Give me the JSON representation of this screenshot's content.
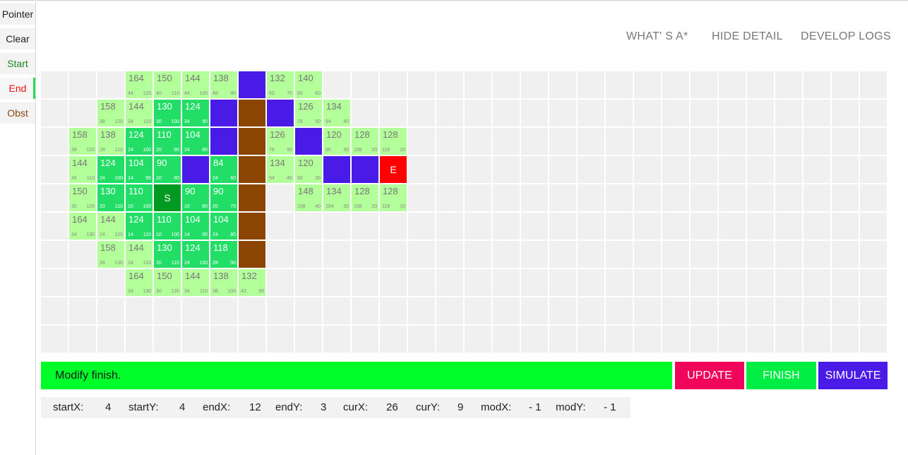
{
  "sidebar": {
    "tools": [
      {
        "label": "Pointer",
        "color": "#222222",
        "active": false
      },
      {
        "label": "Clear",
        "color": "#222222",
        "active": false
      },
      {
        "label": "Start",
        "color": "#1a8a1a",
        "active": false
      },
      {
        "label": "End",
        "color": "#ee1111",
        "active": true
      },
      {
        "label": "Obst",
        "color": "#8b4513",
        "active": false
      }
    ]
  },
  "nav": {
    "whats_astar": "WHAT' S A*",
    "hide_detail": "HIDE DETAIL",
    "develop_logs": "DEVELOP LOGS"
  },
  "grid": {
    "cols": 30,
    "rows": 10,
    "colors": {
      "empty": "#f0f0f0",
      "open": "#b3ff99",
      "closed": "#22dd66",
      "start": "#009922",
      "end": "#ff0000",
      "wall": "#4a1ae6",
      "obstacle": "#8b4500"
    },
    "cells": [
      {
        "col": 3,
        "row": 0,
        "type": "open",
        "f": "164",
        "g": "44",
        "h": "120"
      },
      {
        "col": 4,
        "row": 0,
        "type": "open",
        "f": "150",
        "g": "40",
        "h": "110"
      },
      {
        "col": 5,
        "row": 0,
        "type": "open",
        "f": "144",
        "g": "44",
        "h": "100"
      },
      {
        "col": 6,
        "row": 0,
        "type": "open",
        "f": "138",
        "g": "48",
        "h": "90"
      },
      {
        "col": 7,
        "row": 0,
        "type": "wall"
      },
      {
        "col": 8,
        "row": 0,
        "type": "open",
        "f": "132",
        "g": "62",
        "h": "70"
      },
      {
        "col": 9,
        "row": 0,
        "type": "open",
        "f": "140",
        "g": "80",
        "h": "60"
      },
      {
        "col": 2,
        "row": 1,
        "type": "open",
        "f": "158",
        "g": "38",
        "h": "120"
      },
      {
        "col": 3,
        "row": 1,
        "type": "open",
        "f": "144",
        "g": "34",
        "h": "110"
      },
      {
        "col": 4,
        "row": 1,
        "type": "closed",
        "f": "130",
        "g": "30",
        "h": "100"
      },
      {
        "col": 5,
        "row": 1,
        "type": "closed",
        "f": "124",
        "g": "34",
        "h": "90"
      },
      {
        "col": 6,
        "row": 1,
        "type": "wall"
      },
      {
        "col": 7,
        "row": 1,
        "type": "obstacle"
      },
      {
        "col": 8,
        "row": 1,
        "type": "wall"
      },
      {
        "col": 9,
        "row": 1,
        "type": "open",
        "f": "126",
        "g": "76",
        "h": "50"
      },
      {
        "col": 10,
        "row": 1,
        "type": "open",
        "f": "134",
        "g": "94",
        "h": "40"
      },
      {
        "col": 1,
        "row": 2,
        "type": "open",
        "f": "158",
        "g": "38",
        "h": "120"
      },
      {
        "col": 2,
        "row": 2,
        "type": "open",
        "f": "138",
        "g": "28",
        "h": "110"
      },
      {
        "col": 3,
        "row": 2,
        "type": "closed",
        "f": "124",
        "g": "24",
        "h": "100"
      },
      {
        "col": 4,
        "row": 2,
        "type": "closed",
        "f": "110",
        "g": "20",
        "h": "90"
      },
      {
        "col": 5,
        "row": 2,
        "type": "closed",
        "f": "104",
        "g": "24",
        "h": "80"
      },
      {
        "col": 6,
        "row": 2,
        "type": "wall"
      },
      {
        "col": 7,
        "row": 2,
        "type": "obstacle"
      },
      {
        "col": 8,
        "row": 2,
        "type": "open",
        "f": "126",
        "g": "76",
        "h": "50"
      },
      {
        "col": 9,
        "row": 2,
        "type": "wall"
      },
      {
        "col": 10,
        "row": 2,
        "type": "open",
        "f": "120",
        "g": "90",
        "h": "30"
      },
      {
        "col": 11,
        "row": 2,
        "type": "open",
        "f": "128",
        "g": "108",
        "h": "20"
      },
      {
        "col": 12,
        "row": 2,
        "type": "open",
        "f": "128",
        "g": "118",
        "h": "10"
      },
      {
        "col": 1,
        "row": 3,
        "type": "open",
        "f": "144",
        "g": "34",
        "h": "110"
      },
      {
        "col": 2,
        "row": 3,
        "type": "closed",
        "f": "124",
        "g": "24",
        "h": "100"
      },
      {
        "col": 3,
        "row": 3,
        "type": "closed",
        "f": "104",
        "g": "14",
        "h": "90"
      },
      {
        "col": 4,
        "row": 3,
        "type": "closed",
        "f": "90",
        "g": "10",
        "h": "80"
      },
      {
        "col": 5,
        "row": 3,
        "type": "wall"
      },
      {
        "col": 6,
        "row": 3,
        "type": "closed",
        "f": "84",
        "g": "24",
        "h": "60"
      },
      {
        "col": 7,
        "row": 3,
        "type": "obstacle"
      },
      {
        "col": 8,
        "row": 3,
        "type": "open",
        "f": "134",
        "g": "94",
        "h": "40"
      },
      {
        "col": 9,
        "row": 3,
        "type": "open",
        "f": "120",
        "g": "90",
        "h": "30"
      },
      {
        "col": 10,
        "row": 3,
        "type": "wall"
      },
      {
        "col": 11,
        "row": 3,
        "type": "wall"
      },
      {
        "col": 12,
        "row": 3,
        "type": "end",
        "label": "E"
      },
      {
        "col": 1,
        "row": 4,
        "type": "open",
        "f": "150",
        "g": "30",
        "h": "120"
      },
      {
        "col": 2,
        "row": 4,
        "type": "closed",
        "f": "130",
        "g": "20",
        "h": "110"
      },
      {
        "col": 3,
        "row": 4,
        "type": "closed",
        "f": "110",
        "g": "10",
        "h": "100"
      },
      {
        "col": 4,
        "row": 4,
        "type": "start",
        "label": "S"
      },
      {
        "col": 5,
        "row": 4,
        "type": "closed",
        "f": "90",
        "g": "10",
        "h": "80"
      },
      {
        "col": 6,
        "row": 4,
        "type": "closed",
        "f": "90",
        "g": "20",
        "h": "70"
      },
      {
        "col": 7,
        "row": 4,
        "type": "obstacle"
      },
      {
        "col": 9,
        "row": 4,
        "type": "open",
        "f": "148",
        "g": "108",
        "h": "40"
      },
      {
        "col": 10,
        "row": 4,
        "type": "open",
        "f": "134",
        "g": "104",
        "h": "30"
      },
      {
        "col": 11,
        "row": 4,
        "type": "open",
        "f": "128",
        "g": "108",
        "h": "20"
      },
      {
        "col": 12,
        "row": 4,
        "type": "open",
        "f": "128",
        "g": "118",
        "h": "10"
      },
      {
        "col": 1,
        "row": 5,
        "type": "open",
        "f": "164",
        "g": "34",
        "h": "130"
      },
      {
        "col": 2,
        "row": 5,
        "type": "open",
        "f": "144",
        "g": "24",
        "h": "120"
      },
      {
        "col": 3,
        "row": 5,
        "type": "closed",
        "f": "124",
        "g": "14",
        "h": "110"
      },
      {
        "col": 4,
        "row": 5,
        "type": "closed",
        "f": "110",
        "g": "10",
        "h": "100"
      },
      {
        "col": 5,
        "row": 5,
        "type": "closed",
        "f": "104",
        "g": "14",
        "h": "90"
      },
      {
        "col": 6,
        "row": 5,
        "type": "closed",
        "f": "104",
        "g": "24",
        "h": "80"
      },
      {
        "col": 7,
        "row": 5,
        "type": "obstacle"
      },
      {
        "col": 2,
        "row": 6,
        "type": "open",
        "f": "158",
        "g": "28",
        "h": "130"
      },
      {
        "col": 3,
        "row": 6,
        "type": "open",
        "f": "144",
        "g": "24",
        "h": "120"
      },
      {
        "col": 4,
        "row": 6,
        "type": "closed",
        "f": "130",
        "g": "20",
        "h": "110"
      },
      {
        "col": 5,
        "row": 6,
        "type": "closed",
        "f": "124",
        "g": "24",
        "h": "100"
      },
      {
        "col": 6,
        "row": 6,
        "type": "closed",
        "f": "118",
        "g": "28",
        "h": "90"
      },
      {
        "col": 7,
        "row": 6,
        "type": "obstacle"
      },
      {
        "col": 3,
        "row": 7,
        "type": "open",
        "f": "164",
        "g": "34",
        "h": "130"
      },
      {
        "col": 4,
        "row": 7,
        "type": "open",
        "f": "150",
        "g": "30",
        "h": "120"
      },
      {
        "col": 5,
        "row": 7,
        "type": "open",
        "f": "144",
        "g": "34",
        "h": "110"
      },
      {
        "col": 6,
        "row": 7,
        "type": "open",
        "f": "138",
        "g": "38",
        "h": "100"
      },
      {
        "col": 7,
        "row": 7,
        "type": "open",
        "f": "132",
        "g": "42",
        "h": "90"
      }
    ]
  },
  "status": {
    "message": "Modify finish."
  },
  "buttons": {
    "update": {
      "label": "UPDATE",
      "color": "#f0055a"
    },
    "finish": {
      "label": "FINISH",
      "color": "#00ee44"
    },
    "simulate": {
      "label": "SIMULATE",
      "color": "#4a1ae6"
    }
  },
  "params": [
    {
      "label": "startX:",
      "value": "4"
    },
    {
      "label": "startY:",
      "value": "4"
    },
    {
      "label": "endX:",
      "value": "12"
    },
    {
      "label": "endY:",
      "value": "3"
    },
    {
      "label": "curX:",
      "value": "26"
    },
    {
      "label": "curY:",
      "value": "9"
    },
    {
      "label": "modX:",
      "value": "- 1"
    },
    {
      "label": "modY:",
      "value": "- 1"
    }
  ]
}
